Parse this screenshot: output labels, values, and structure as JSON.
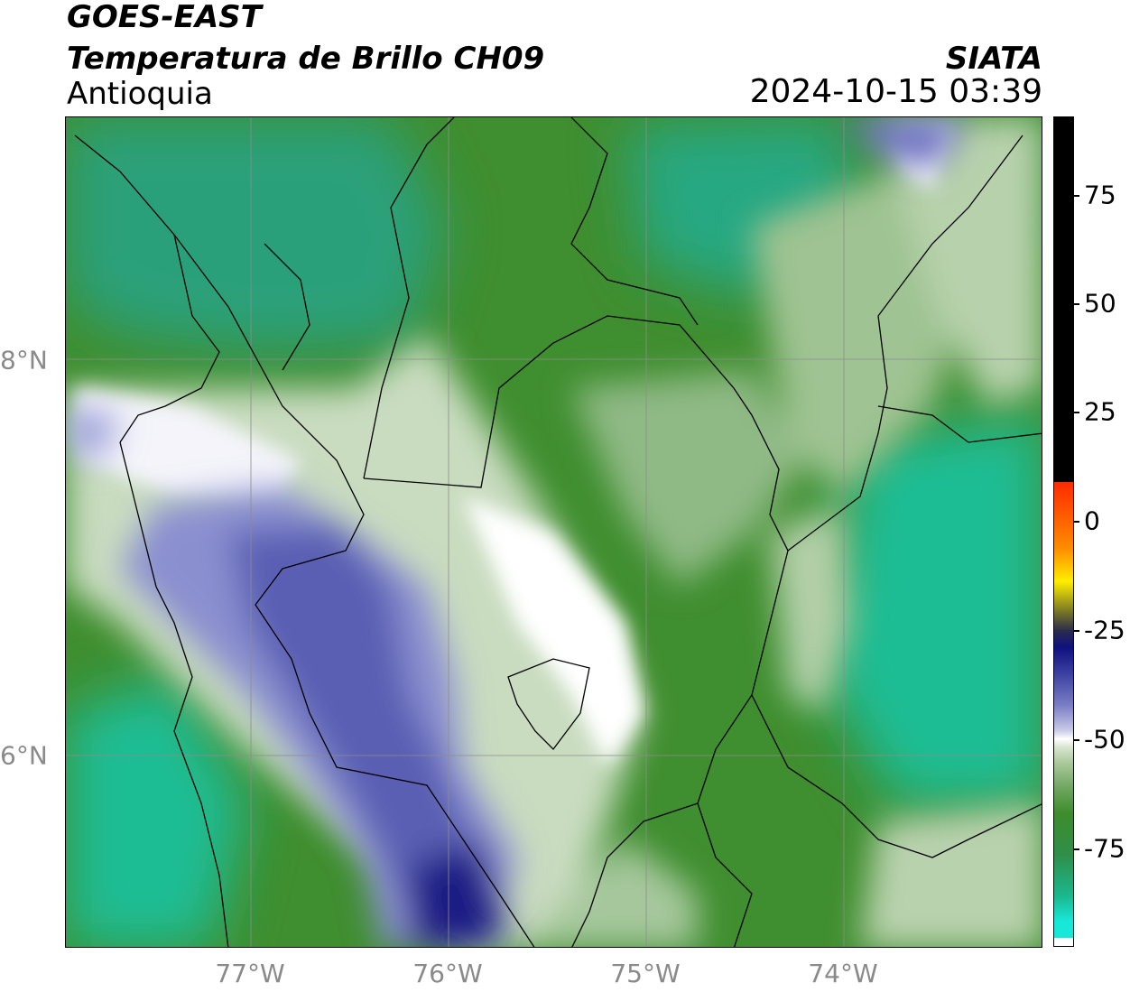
{
  "header": {
    "satellite": "GOES-EAST",
    "product": "Temperatura de Brillo CH09",
    "region": "Antioquia",
    "agency": "SIATA",
    "datetime": "2024-10-15 03:39"
  },
  "map": {
    "lon_ticks": [
      "77°W",
      "76°W",
      "75°W",
      "74°W"
    ],
    "lat_ticks": [
      "8°N",
      "6°N"
    ]
  },
  "colorbar": {
    "ticks": [
      "75",
      "50",
      "25",
      "0",
      "-25",
      "-50",
      "-75"
    ],
    "colors": {
      "warm_top": "#000000",
      "red": "#ff2a00",
      "orange": "#ff8c00",
      "yellow": "#ffee00",
      "olive": "#6b6b2a",
      "navy": "#101080",
      "periwinkle": "#7b7fc4",
      "white": "#ffffff",
      "green_light": "#a9c79a",
      "green_dark": "#3e8c2c",
      "teal": "#1ab88f",
      "cyan": "#18e8d8"
    }
  }
}
